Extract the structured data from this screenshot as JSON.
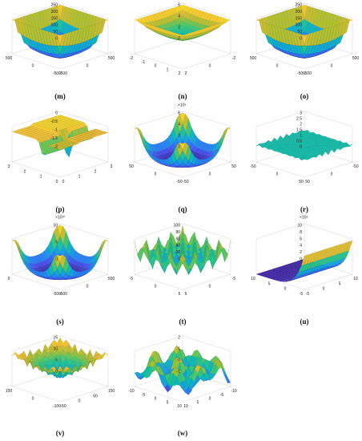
{
  "figure": {
    "panel_count": 11
  },
  "chart_data": [
    {
      "id": "m",
      "label": "(m)",
      "type": "surface",
      "surface": "bowl",
      "x_ticks": [
        "500",
        "0",
        "-500"
      ],
      "y_ticks": [
        "-500",
        "0",
        "500"
      ],
      "z_ticks": [
        "0",
        "50",
        "100",
        "150",
        "200",
        "250"
      ],
      "z_exponent": "",
      "zlim": [
        0,
        250
      ],
      "xlim": [
        -500,
        500
      ],
      "ylim": [
        -500,
        500
      ],
      "grid": true
    },
    {
      "id": "n",
      "label": "(n)",
      "type": "surface",
      "surface": "bowl-flat",
      "x_ticks": [
        "-2",
        "-1",
        "0",
        "1",
        "2"
      ],
      "y_ticks": [
        "2",
        "0",
        "-2"
      ],
      "z_ticks": [
        "0",
        "2",
        "4",
        "6"
      ],
      "z_exponent": "",
      "zlim": [
        0,
        6
      ],
      "xlim": [
        -2,
        2
      ],
      "ylim": [
        -2,
        2
      ],
      "grid": true
    },
    {
      "id": "o",
      "label": "(o)",
      "type": "surface",
      "surface": "bowl",
      "x_ticks": [
        "500",
        "0",
        "-500"
      ],
      "y_ticks": [
        "-500",
        "0",
        "500"
      ],
      "z_ticks": [
        "0",
        "50",
        "100",
        "150",
        "200",
        "250"
      ],
      "z_exponent": "",
      "zlim": [
        0,
        250
      ],
      "xlim": [
        -500,
        500
      ],
      "ylim": [
        -500,
        500
      ],
      "grid": true
    },
    {
      "id": "p",
      "label": "(p)",
      "type": "surface",
      "surface": "steps",
      "x_ticks": [
        "3",
        "2",
        "1",
        "0"
      ],
      "y_ticks": [
        "0",
        "1",
        "2",
        "3"
      ],
      "z_ticks": [
        "-2",
        "-1.5",
        "-1",
        "-0.5",
        "0"
      ],
      "z_exponent": "",
      "zlim": [
        -2,
        0
      ],
      "xlim": [
        0,
        3
      ],
      "ylim": [
        0,
        3
      ],
      "grid": true
    },
    {
      "id": "q",
      "label": "(q)",
      "type": "surface",
      "surface": "bowl-corners",
      "x_ticks": [
        "50",
        "0",
        "-50"
      ],
      "y_ticks": [
        "-50",
        "0",
        "50"
      ],
      "z_ticks": [
        "0",
        "2",
        "4",
        "6"
      ],
      "z_exponent": "10⁶",
      "zlim": [
        0,
        6
      ],
      "xlim": [
        -50,
        50
      ],
      "ylim": [
        -50,
        50
      ],
      "grid": true
    },
    {
      "id": "r",
      "label": "(r)",
      "type": "surface",
      "surface": "needles",
      "x_ticks": [
        "-50",
        "0",
        "50"
      ],
      "y_ticks": [
        "50",
        "0",
        "-50"
      ],
      "z_ticks": [
        "0",
        "0.5",
        "1",
        "1.5",
        "2",
        "2.5",
        "3"
      ],
      "z_exponent": "",
      "zlim": [
        0,
        3
      ],
      "xlim": [
        -50,
        50
      ],
      "ylim": [
        -50,
        50
      ],
      "grid": true
    },
    {
      "id": "s",
      "label": "(s)",
      "type": "surface",
      "surface": "bowl-corners",
      "x_ticks": [
        "0",
        "-500"
      ],
      "y_ticks": [
        "-500",
        "0",
        "500"
      ],
      "z_ticks": [
        "0",
        "5",
        "10"
      ],
      "z_exponent": "10¹⁰",
      "zlim": [
        0,
        12
      ],
      "xlim": [
        -500,
        500
      ],
      "ylim": [
        -500,
        500
      ],
      "grid": true
    },
    {
      "id": "t",
      "label": "(t)",
      "type": "surface",
      "surface": "egg",
      "x_ticks": [
        "-5",
        "0",
        "5"
      ],
      "y_ticks": [
        "5",
        "0",
        "-5"
      ],
      "z_ticks": [
        "0",
        "20",
        "40",
        "60",
        "80",
        "100"
      ],
      "z_exponent": "",
      "zlim": [
        0,
        100
      ],
      "xlim": [
        -5,
        5
      ],
      "ylim": [
        -5,
        5
      ],
      "grid": true
    },
    {
      "id": "u",
      "label": "(u)",
      "type": "surface",
      "surface": "exp",
      "x_ticks": [
        "10",
        "5",
        "0",
        "-5"
      ],
      "y_ticks": [
        "-5",
        "0",
        "5",
        "10"
      ],
      "z_ticks": [
        "0",
        "2",
        "4",
        "6",
        "8",
        "10"
      ],
      "z_exponent": "10⁹",
      "zlim": [
        0,
        10
      ],
      "xlim": [
        -5,
        10
      ],
      "ylim": [
        -5,
        10
      ],
      "grid": true
    },
    {
      "id": "v",
      "label": "(v)",
      "type": "surface",
      "surface": "cone-noise",
      "x_ticks": [
        "100",
        "0",
        "-100"
      ],
      "y_ticks": [
        "-50",
        "0",
        "50",
        "100"
      ],
      "z_ticks": [
        "0",
        "5",
        "10",
        "15"
      ],
      "z_exponent": "",
      "zlim": [
        0,
        15
      ],
      "xlim": [
        -100,
        100
      ],
      "ylim": [
        -100,
        100
      ],
      "grid": true
    },
    {
      "id": "w",
      "label": "(w)",
      "type": "surface",
      "surface": "waves",
      "x_ticks": [
        "-10",
        "-5",
        "0",
        "5",
        "10"
      ],
      "y_ticks": [
        "10",
        "5",
        "0",
        "-5",
        "-10"
      ],
      "z_ticks": [
        "-1",
        "0",
        "1",
        "2"
      ],
      "z_exponent": "",
      "zlim": [
        -1,
        2
      ],
      "xlim": [
        -10,
        10
      ],
      "ylim": [
        -10,
        10
      ],
      "grid": true
    }
  ]
}
